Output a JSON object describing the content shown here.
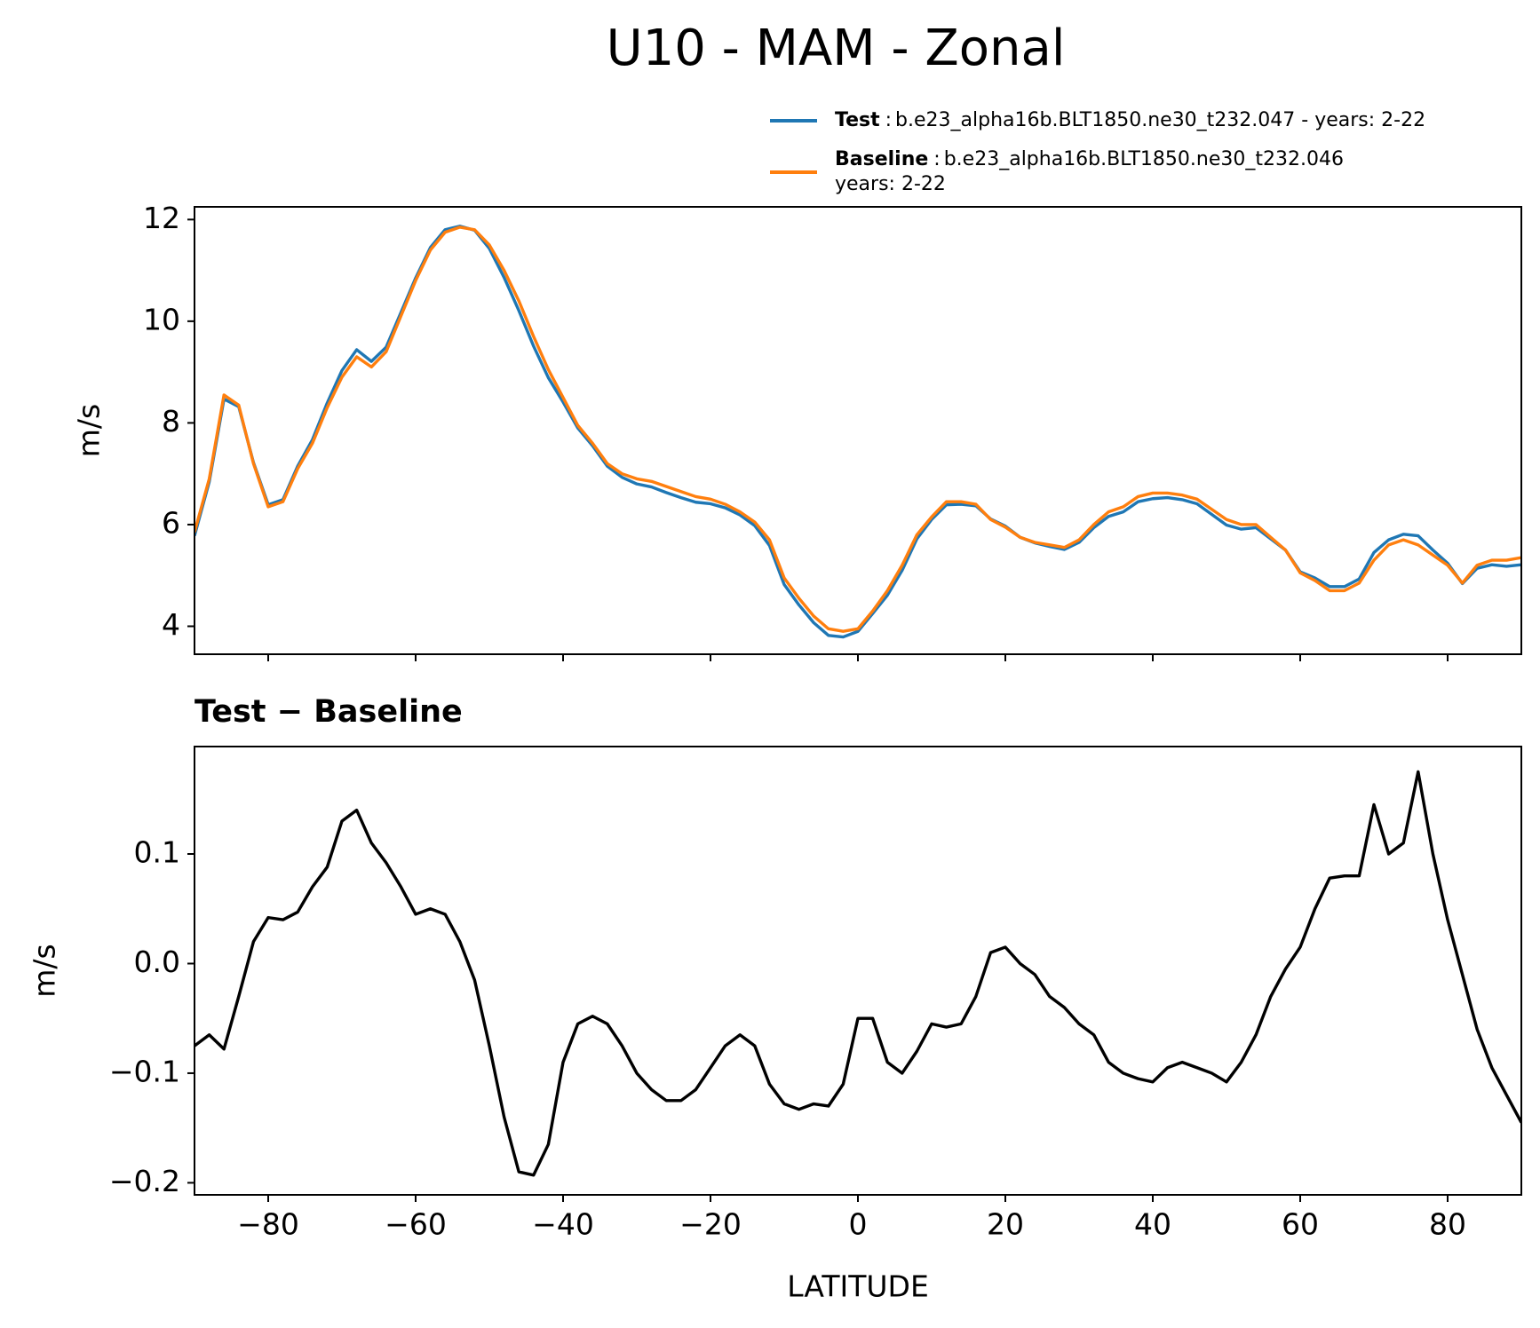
{
  "chart_data": [
    {
      "type": "line",
      "title": "U10 - MAM - Zonal",
      "ylabel": "m/s",
      "show_xtick_labels": false,
      "legend_separator": ":",
      "x": [
        -90,
        -88,
        -86,
        -84,
        -82,
        -80,
        -78,
        -76,
        -74,
        -72,
        -70,
        -68,
        -66,
        -64,
        -62,
        -60,
        -58,
        -56,
        -54,
        -52,
        -50,
        -48,
        -46,
        -44,
        -42,
        -40,
        -38,
        -36,
        -34,
        -32,
        -30,
        -28,
        -26,
        -24,
        -22,
        -20,
        -18,
        -16,
        -14,
        -12,
        -10,
        -8,
        -6,
        -4,
        -2,
        0,
        2,
        4,
        6,
        8,
        10,
        12,
        14,
        16,
        18,
        20,
        22,
        24,
        26,
        28,
        30,
        32,
        34,
        36,
        38,
        40,
        42,
        44,
        46,
        48,
        50,
        52,
        54,
        56,
        58,
        60,
        62,
        64,
        66,
        68,
        70,
        72,
        74,
        76,
        78,
        80,
        82,
        84,
        86,
        88,
        90
      ],
      "series": [
        {
          "name": "Test",
          "info": [
            "b.e23_alpha16b.BLT1850.ne30_t232.047 - years: 2-22"
          ],
          "color": "#1f77b4",
          "values": [
            5.78,
            6.84,
            8.47,
            8.32,
            7.22,
            6.39,
            6.49,
            7.15,
            7.67,
            8.39,
            9.03,
            9.44,
            9.21,
            9.49,
            10.17,
            10.85,
            11.45,
            11.8,
            11.87,
            11.79,
            11.43,
            10.86,
            10.21,
            9.51,
            8.89,
            8.41,
            7.9,
            7.55,
            7.15,
            6.93,
            6.8,
            6.74,
            6.63,
            6.53,
            6.44,
            6.41,
            6.33,
            6.19,
            5.98,
            5.59,
            4.82,
            4.42,
            4.07,
            3.82,
            3.79,
            3.9,
            4.25,
            4.61,
            5.1,
            5.72,
            6.1,
            6.39,
            6.4,
            6.37,
            6.11,
            5.97,
            5.75,
            5.64,
            5.57,
            5.51,
            5.65,
            5.94,
            6.16,
            6.25,
            6.45,
            6.51,
            6.53,
            6.49,
            6.41,
            6.2,
            5.99,
            5.91,
            5.94,
            5.72,
            5.5,
            5.07,
            4.95,
            4.78,
            4.78,
            4.93,
            5.45,
            5.7,
            5.81,
            5.78,
            5.5,
            5.24,
            4.84,
            5.14,
            5.21,
            5.18,
            5.21
          ]
        },
        {
          "name": "Baseline",
          "info": [
            "b.e23_alpha16b.BLT1850.ne30_t232.046",
            "years: 2-22"
          ],
          "color": "#ff7f0e",
          "values": [
            5.85,
            6.9,
            8.55,
            8.35,
            7.2,
            6.35,
            6.45,
            7.1,
            7.6,
            8.3,
            8.9,
            9.3,
            9.1,
            9.4,
            10.1,
            10.8,
            11.4,
            11.75,
            11.85,
            11.8,
            11.5,
            11.0,
            10.4,
            9.7,
            9.05,
            8.5,
            7.95,
            7.6,
            7.2,
            7.0,
            6.9,
            6.85,
            6.75,
            6.65,
            6.55,
            6.5,
            6.4,
            6.25,
            6.05,
            5.7,
            4.95,
            4.55,
            4.2,
            3.95,
            3.9,
            3.95,
            4.3,
            4.7,
            5.2,
            5.8,
            6.15,
            6.45,
            6.45,
            6.4,
            6.1,
            5.95,
            5.75,
            5.65,
            5.6,
            5.55,
            5.7,
            6.0,
            6.25,
            6.35,
            6.55,
            6.62,
            6.62,
            6.58,
            6.5,
            6.3,
            6.1,
            6.0,
            6.0,
            5.75,
            5.5,
            5.05,
            4.9,
            4.7,
            4.7,
            4.85,
            5.3,
            5.6,
            5.7,
            5.6,
            5.4,
            5.2,
            4.85,
            5.2,
            5.3,
            5.3,
            5.35
          ]
        }
      ],
      "xlim": [
        -90,
        90
      ],
      "xticks": [
        {
          "value": -80,
          "label": "−80"
        },
        {
          "value": -60,
          "label": "−60"
        },
        {
          "value": -40,
          "label": "−40"
        },
        {
          "value": -20,
          "label": "−20"
        },
        0,
        20,
        40,
        60,
        80
      ],
      "ylim": [
        3.45,
        12.25
      ],
      "yticks": [
        4,
        6,
        8,
        10,
        12
      ]
    },
    {
      "type": "line",
      "title": "Test − Baseline",
      "ylabel": "m/s",
      "xlabel": "LATITUDE",
      "show_xtick_labels": true,
      "x": [
        -90,
        -88,
        -86,
        -84,
        -82,
        -80,
        -78,
        -76,
        -74,
        -72,
        -70,
        -68,
        -66,
        -64,
        -62,
        -60,
        -58,
        -56,
        -54,
        -52,
        -50,
        -48,
        -46,
        -44,
        -42,
        -40,
        -38,
        -36,
        -34,
        -32,
        -30,
        -28,
        -26,
        -24,
        -22,
        -20,
        -18,
        -16,
        -14,
        -12,
        -10,
        -8,
        -6,
        -4,
        -2,
        0,
        2,
        4,
        6,
        8,
        10,
        12,
        14,
        16,
        18,
        20,
        22,
        24,
        26,
        28,
        30,
        32,
        34,
        36,
        38,
        40,
        42,
        44,
        46,
        48,
        50,
        52,
        54,
        56,
        58,
        60,
        62,
        64,
        66,
        68,
        70,
        72,
        74,
        76,
        78,
        80,
        82,
        84,
        86,
        88,
        90
      ],
      "series": [
        {
          "color": "#000000",
          "values": [
            -0.075,
            -0.065,
            -0.078,
            -0.03,
            0.02,
            0.042,
            0.04,
            0.047,
            0.07,
            0.088,
            0.13,
            0.14,
            0.11,
            0.092,
            0.07,
            0.045,
            0.05,
            0.045,
            0.02,
            -0.015,
            -0.075,
            -0.14,
            -0.19,
            -0.193,
            -0.165,
            -0.09,
            -0.055,
            -0.048,
            -0.055,
            -0.075,
            -0.1,
            -0.115,
            -0.125,
            -0.125,
            -0.115,
            -0.095,
            -0.075,
            -0.065,
            -0.075,
            -0.11,
            -0.128,
            -0.133,
            -0.128,
            -0.13,
            -0.11,
            -0.05,
            -0.05,
            -0.09,
            -0.1,
            -0.08,
            -0.055,
            -0.058,
            -0.055,
            -0.03,
            0.01,
            0.015,
            0.0,
            -0.01,
            -0.03,
            -0.04,
            -0.055,
            -0.065,
            -0.09,
            -0.1,
            -0.105,
            -0.108,
            -0.095,
            -0.09,
            -0.095,
            -0.1,
            -0.108,
            -0.09,
            -0.065,
            -0.03,
            -0.005,
            0.015,
            0.05,
            0.078,
            0.08,
            0.08,
            0.145,
            0.1,
            0.11,
            0.175,
            0.1,
            0.04,
            -0.01,
            -0.06,
            -0.095,
            -0.12,
            -0.145
          ]
        }
      ],
      "xlim": [
        -90,
        90
      ],
      "xticks": [
        {
          "value": -80,
          "label": "−80"
        },
        {
          "value": -60,
          "label": "−60"
        },
        {
          "value": -40,
          "label": "−40"
        },
        {
          "value": -20,
          "label": "−20"
        },
        0,
        20,
        40,
        60,
        80
      ],
      "ylim": [
        -0.211,
        0.198
      ],
      "yticks": [
        {
          "value": -0.2,
          "label": "−0.2"
        },
        {
          "value": -0.1,
          "label": "−0.1"
        },
        {
          "value": 0,
          "label": "0.0"
        },
        0.1
      ]
    }
  ]
}
